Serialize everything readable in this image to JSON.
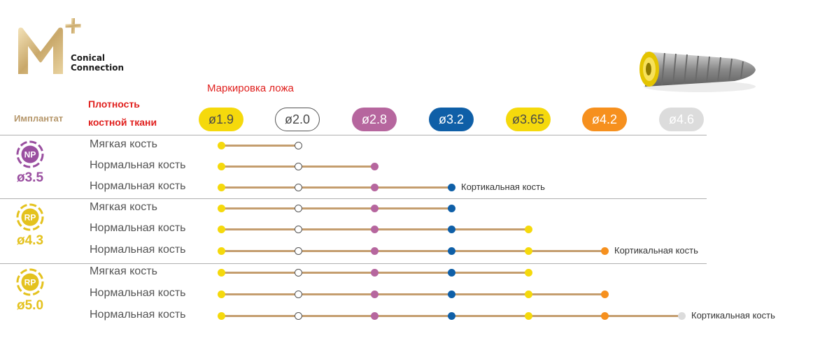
{
  "logo": {
    "mark": "M+",
    "line1": "Conical",
    "line2": "Connection"
  },
  "header": {
    "marking_title": "Маркировка ложа",
    "density_line1": "Плотность",
    "density_line2": "костной ткани",
    "implant_title": "Имплантат"
  },
  "drills": [
    {
      "label": "ø1.9",
      "color": "#f5d90c",
      "text_color": "#4a4a4a",
      "outline": false
    },
    {
      "label": "ø2.0",
      "color": "#ffffff",
      "text_color": "#4a4a4a",
      "outline": true
    },
    {
      "label": "ø2.8",
      "color": "#b6669e",
      "text_color": "#ffffff",
      "outline": false
    },
    {
      "label": "ø3.2",
      "color": "#0f5fa7",
      "text_color": "#ffffff",
      "outline": false
    },
    {
      "label": "ø3.65",
      "color": "#f5d90c",
      "text_color": "#4a4a4a",
      "outline": false
    },
    {
      "label": "ø4.2",
      "color": "#f6901e",
      "text_color": "#ffffff",
      "outline": false
    },
    {
      "label": "ø4.6",
      "color": "#dcdcdc",
      "text_color": "#ffffff",
      "outline": false
    }
  ],
  "groups": [
    {
      "badge": "NP",
      "badge_color": "#9a4fa0",
      "diameter": "ø3.5",
      "rows": [
        {
          "label": "Мягкая кость",
          "steps": 2,
          "end_label": ""
        },
        {
          "label": "Нормальная кость",
          "steps": 3,
          "end_label": ""
        },
        {
          "label": "Нормальная кость",
          "steps": 4,
          "end_label": "Кортикальная кость"
        }
      ]
    },
    {
      "badge": "RP",
      "badge_color": "#e4c21e",
      "diameter": "ø4.3",
      "rows": [
        {
          "label": "Мягкая кость",
          "steps": 4,
          "end_label": ""
        },
        {
          "label": "Нормальная кость",
          "steps": 5,
          "end_label": ""
        },
        {
          "label": "Нормальная кость",
          "steps": 6,
          "end_label": "Кортикальная кость"
        }
      ]
    },
    {
      "badge": "RP",
      "badge_color": "#e4c21e",
      "diameter": "ø5.0",
      "rows": [
        {
          "label": "Мягкая кость",
          "steps": 5,
          "end_label": ""
        },
        {
          "label": "Нормальная кость",
          "steps": 6,
          "end_label": ""
        },
        {
          "label": "Нормальная кость",
          "steps": 7,
          "end_label": "Кортикальная кость"
        }
      ]
    }
  ]
}
